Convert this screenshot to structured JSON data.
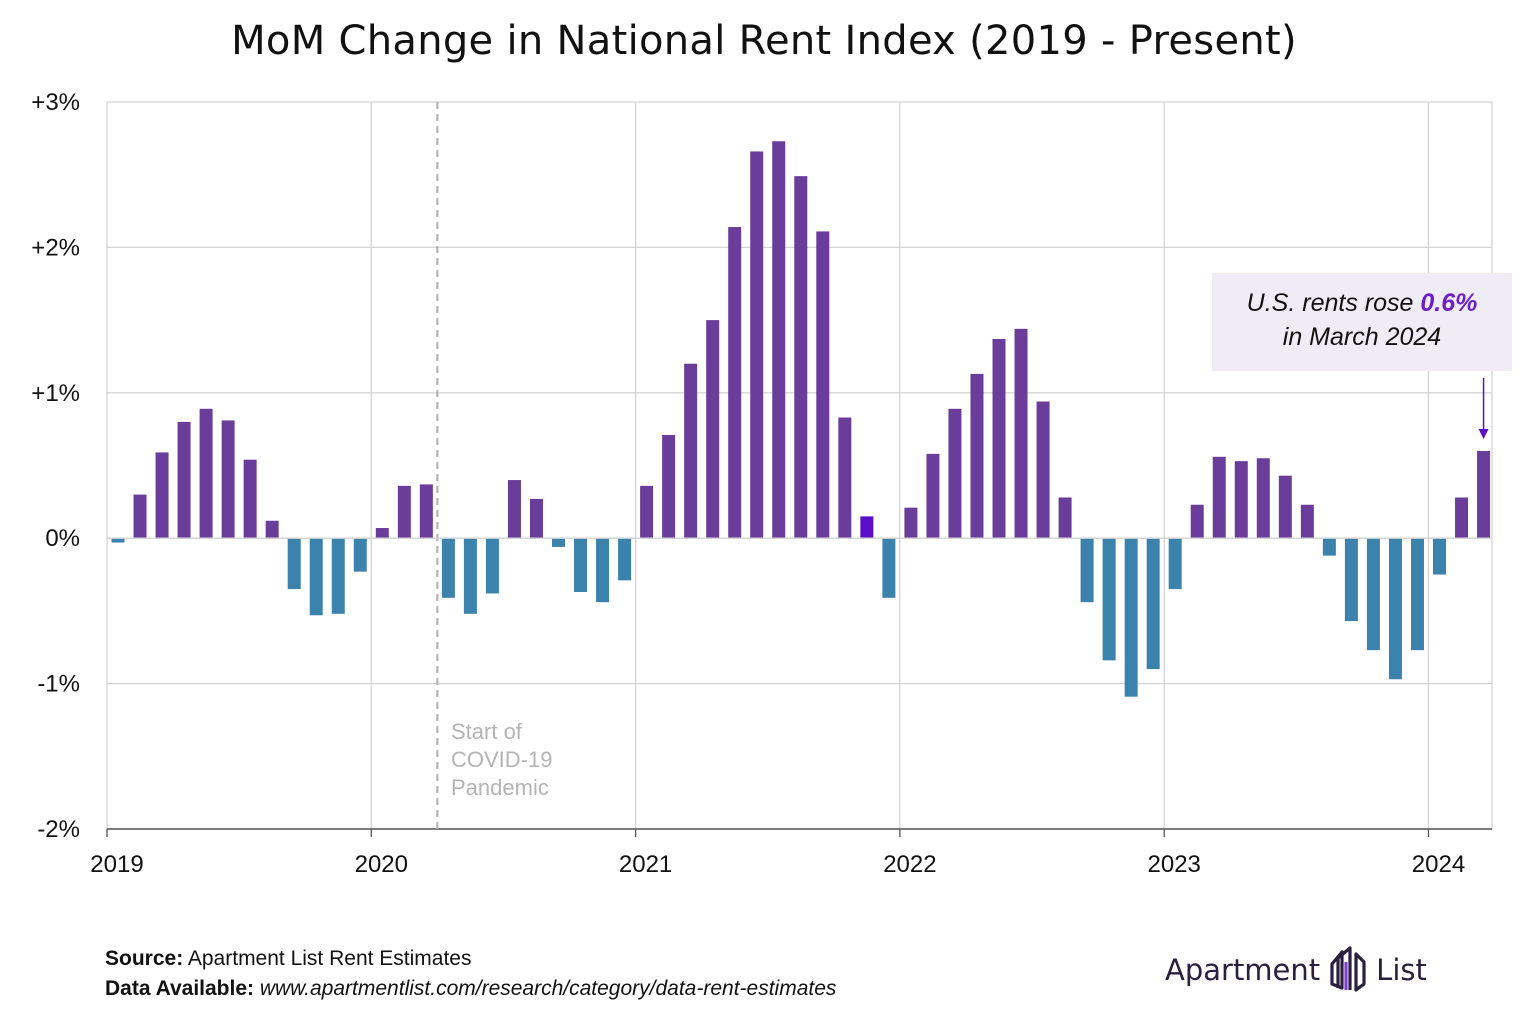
{
  "chart_data": {
    "type": "bar",
    "title": "MoM Change in National Rent Index (2019 - Present)",
    "xlabel": "",
    "ylabel": "",
    "ylim": [
      -2,
      3
    ],
    "yticks": [
      "+3%",
      "+2%",
      "+1%",
      "0%",
      "-1%",
      "-2%"
    ],
    "ytick_values": [
      3,
      2,
      1,
      0,
      -1,
      -2
    ],
    "xticks": [
      "2019",
      "2020",
      "2021",
      "2022",
      "2023",
      "2024"
    ],
    "x_start": "2019-01",
    "x_end": "2024-03",
    "grid": true,
    "positive_color": "#6a3d9a",
    "negative_color": "#3b82ad",
    "highlight_color": "#5b0fc6",
    "covid_line_color": "#b4b4b4",
    "values": [
      -0.03,
      0.3,
      0.59,
      0.8,
      0.89,
      0.81,
      0.54,
      0.12,
      -0.35,
      -0.53,
      -0.52,
      -0.23,
      0.07,
      0.36,
      0.37,
      -0.41,
      -0.52,
      -0.38,
      0.4,
      0.27,
      -0.06,
      -0.37,
      -0.44,
      -0.29,
      0.36,
      0.71,
      1.2,
      1.5,
      2.14,
      2.66,
      2.73,
      2.49,
      2.11,
      0.83,
      0.15,
      -0.41,
      0.21,
      0.58,
      0.89,
      1.13,
      1.37,
      1.44,
      0.94,
      0.28,
      -0.44,
      -0.84,
      -1.09,
      -0.9,
      -0.35,
      0.23,
      0.56,
      0.53,
      0.55,
      0.43,
      0.23,
      -0.12,
      -0.57,
      -0.77,
      -0.97,
      -0.77,
      -0.25,
      0.28,
      0.6
    ],
    "highlight_index": 34,
    "covid_index": 14.5,
    "annotations": [
      {
        "text_before": "U.S. rents rose ",
        "value_text": "0.6%",
        "text_line2": "in March 2024",
        "arrow_index": 62
      },
      {
        "lines": [
          "Start of",
          "COVID-19",
          "Pandemic"
        ]
      }
    ]
  },
  "footer": {
    "source_label": "Source:",
    "source_text": "Apartment List Rent Estimates",
    "data_label": "Data Available:",
    "data_url": "www.apartmentlist.com/research/category/data-rent-estimates"
  },
  "logo": {
    "word1": "Apartment",
    "word2": "List",
    "icon": "apartment-list-logo-icon"
  }
}
